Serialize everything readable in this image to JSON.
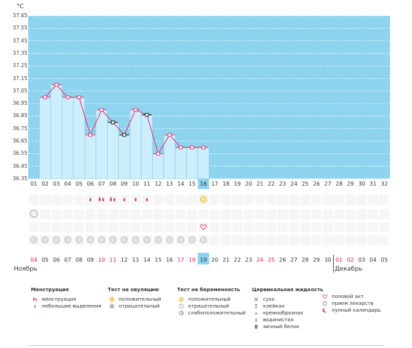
{
  "chart_data": {
    "type": "bar",
    "unit": "°C",
    "ylim": [
      36.35,
      37.65
    ],
    "y_ticks": [
      "37.65",
      "37.55",
      "37.45",
      "37.35",
      "37.25",
      "37.15",
      "37.05",
      "36.95",
      "36.85",
      "36.75",
      "36.65",
      "36.55",
      "36.45",
      "36.35"
    ],
    "cycle_days": [
      "01",
      "02",
      "03",
      "04",
      "05",
      "06",
      "07",
      "08",
      "09",
      "10",
      "11",
      "12",
      "13",
      "14",
      "15",
      "16",
      "17",
      "18",
      "19",
      "20",
      "21",
      "22",
      "23",
      "24",
      "25",
      "26",
      "27",
      "28",
      "29",
      "30",
      "31",
      "32"
    ],
    "current_day_index": 15,
    "temperatures": [
      null,
      37.0,
      37.1,
      37.0,
      37.0,
      36.7,
      36.9,
      36.8,
      36.7,
      36.9,
      36.86,
      36.55,
      36.7,
      36.6,
      36.6,
      36.6
    ],
    "marker_types": [
      null,
      "pink",
      "pink",
      "pink",
      "pink",
      "pink",
      "pink",
      "black",
      "black",
      "pink",
      "black",
      "pink",
      "pink",
      "pink",
      "pink",
      "pink"
    ],
    "dates": [
      "04",
      "05",
      "06",
      "07",
      "08",
      "09",
      "10",
      "11",
      "12",
      "13",
      "14",
      "15",
      "16",
      "17",
      "18",
      "19",
      "20",
      "21",
      "22",
      "23",
      "24",
      "25",
      "26",
      "27",
      "28",
      "29",
      "30",
      "01",
      "02",
      "03",
      "04",
      "05"
    ],
    "red_dates": [
      0,
      6,
      7,
      13,
      14,
      20,
      21,
      27,
      28
    ],
    "months": [
      "Ноябрь",
      "Декабрь"
    ],
    "menstruation_days": [
      5,
      6,
      7,
      8,
      9,
      10
    ],
    "menstruation_heavy_days": [
      6,
      7
    ],
    "ovulation_positive_day": 15,
    "intercourse_day": 15,
    "pill_days": [
      0,
      1,
      2,
      3,
      4,
      5,
      6,
      7,
      8,
      9,
      10,
      11,
      12,
      13,
      14,
      15
    ],
    "row_icon_day": 0
  },
  "legend": {
    "menstruation": {
      "title": "Менструация",
      "items": [
        "менструация",
        "небольшие выделения"
      ]
    },
    "ovulation_test": {
      "title": "Тест на овуляцию",
      "items": [
        "положительный",
        "отрицательный"
      ]
    },
    "pregnancy_test": {
      "title": "Тест на беременность",
      "items": [
        "положительный",
        "отрицательный",
        "слабоположительный"
      ]
    },
    "cervical_fluid": {
      "title": "Цервикальная жидкость",
      "items": [
        "сухо",
        "клейкая",
        "кремообразная",
        "водянистая",
        "яичный белок"
      ]
    },
    "other": {
      "items": [
        "половой акт",
        "прием лекарств",
        "лунный календарь"
      ]
    }
  },
  "colors": {
    "sky": "#8fd4ef",
    "bar": "#cdeefc",
    "bar_edge": "#7fc6e6",
    "line": "#e0407a",
    "highlight": "#8dd3ef",
    "red_text": "#e0205a"
  }
}
